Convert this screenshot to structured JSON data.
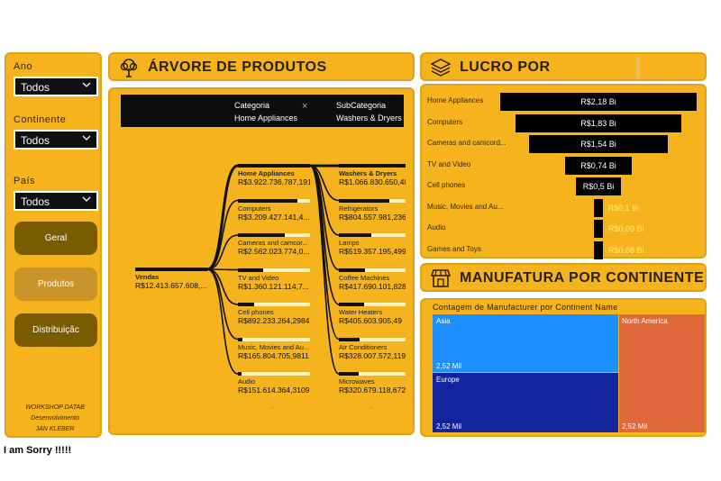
{
  "filters": {
    "ano_label": "Ano",
    "ano_value": "Todos",
    "continente_label": "Continente",
    "continente_value": "Todos",
    "pais_label": "País",
    "pais_value": "Todos",
    "buttons": [
      "Geral",
      "Produtos",
      "Distribuiçãc"
    ],
    "credit": [
      "WORKSHOP DATAB",
      "Desenvolvimento",
      "JAN KLEBER"
    ]
  },
  "tree": {
    "title": "ÁRVORE DE PRODUTOS",
    "crumb1_label": "Categoria",
    "crumb1_value": "Home Appliances",
    "crumb_close": "×",
    "crumb2_label": "SubCategoria",
    "crumb2_value": "Washers & Dryers",
    "root": {
      "label": "Vendas",
      "value": "R$12.413.657.608,..."
    },
    "categories": [
      {
        "label": "Home Appliances",
        "value": "R$3.922.736.787,191",
        "fill": 1.0
      },
      {
        "label": "Computers",
        "value": "R$3.209.427.141,4...",
        "fill": 0.82
      },
      {
        "label": "Cameras and camcor...",
        "value": "R$2.562.023.774,0...",
        "fill": 0.65
      },
      {
        "label": "TV and Video",
        "value": "R$1.360.121.114,7...",
        "fill": 0.35
      },
      {
        "label": "Cell phones",
        "value": "R$892.233.264,2984",
        "fill": 0.23
      },
      {
        "label": "Music, Movies and Au...",
        "value": "R$165.804.705,9811",
        "fill": 0.06
      },
      {
        "label": "Audio",
        "value": "R$151.614.364,3109",
        "fill": 0.05
      }
    ],
    "subcategories": [
      {
        "label": "Washers & Dryers",
        "value": "R$1.066.830.650,48",
        "fill": 1.0
      },
      {
        "label": "Refrigerators",
        "value": "R$804.557.981,236",
        "fill": 0.75
      },
      {
        "label": "Lamps",
        "value": "R$519.357.195,499",
        "fill": 0.49
      },
      {
        "label": "Coffee Machines",
        "value": "R$417.690.101,828",
        "fill": 0.39
      },
      {
        "label": "Water Heaters",
        "value": "R$405.603.905,49",
        "fill": 0.38
      },
      {
        "label": "Air Conditioners",
        "value": "R$328.007.572,119",
        "fill": 0.31
      },
      {
        "label": "Microwaves",
        "value": "R$320.679.118,672",
        "fill": 0.3
      }
    ],
    "more": "⌄"
  },
  "lucro": {
    "title": "LUCRO POR",
    "rows": [
      {
        "label": "Home Appliances",
        "value": "R$2,18 Bi",
        "pct": 1.0
      },
      {
        "label": "Computers",
        "value": "R$1,83 Bi",
        "pct": 0.84
      },
      {
        "label": "Cameras and camcord...",
        "value": "R$1,54 Bi",
        "pct": 0.71
      },
      {
        "label": "TV and Video",
        "value": "R$0,74 Bi",
        "pct": 0.34
      },
      {
        "label": "Cell phones",
        "value": "R$0,5 Bi",
        "pct": 0.23
      },
      {
        "label": "Music, Movies and Au...",
        "value": "R$0,1 Bi",
        "pct": 0.05
      },
      {
        "label": "Audio",
        "value": "R$0,09 Bi",
        "pct": 0.04
      },
      {
        "label": "Games and Toys",
        "value": "R$0,08 Bi",
        "pct": 0.04
      }
    ]
  },
  "manuf": {
    "title": "MANUFATURA POR CONTINENTE",
    "subtitle": "Contagem de Manufacturer por Continent Name",
    "cells": [
      {
        "name": "Asia",
        "value": "2,52 Mil",
        "color": "#1E8FFF"
      },
      {
        "name": "Europe",
        "value": "2,52 Mil",
        "color": "#12239E"
      },
      {
        "name": "North America",
        "value": "2,52 Mil",
        "color": "#E0683A"
      }
    ]
  },
  "footer": "I am Sorry !!!!!"
}
